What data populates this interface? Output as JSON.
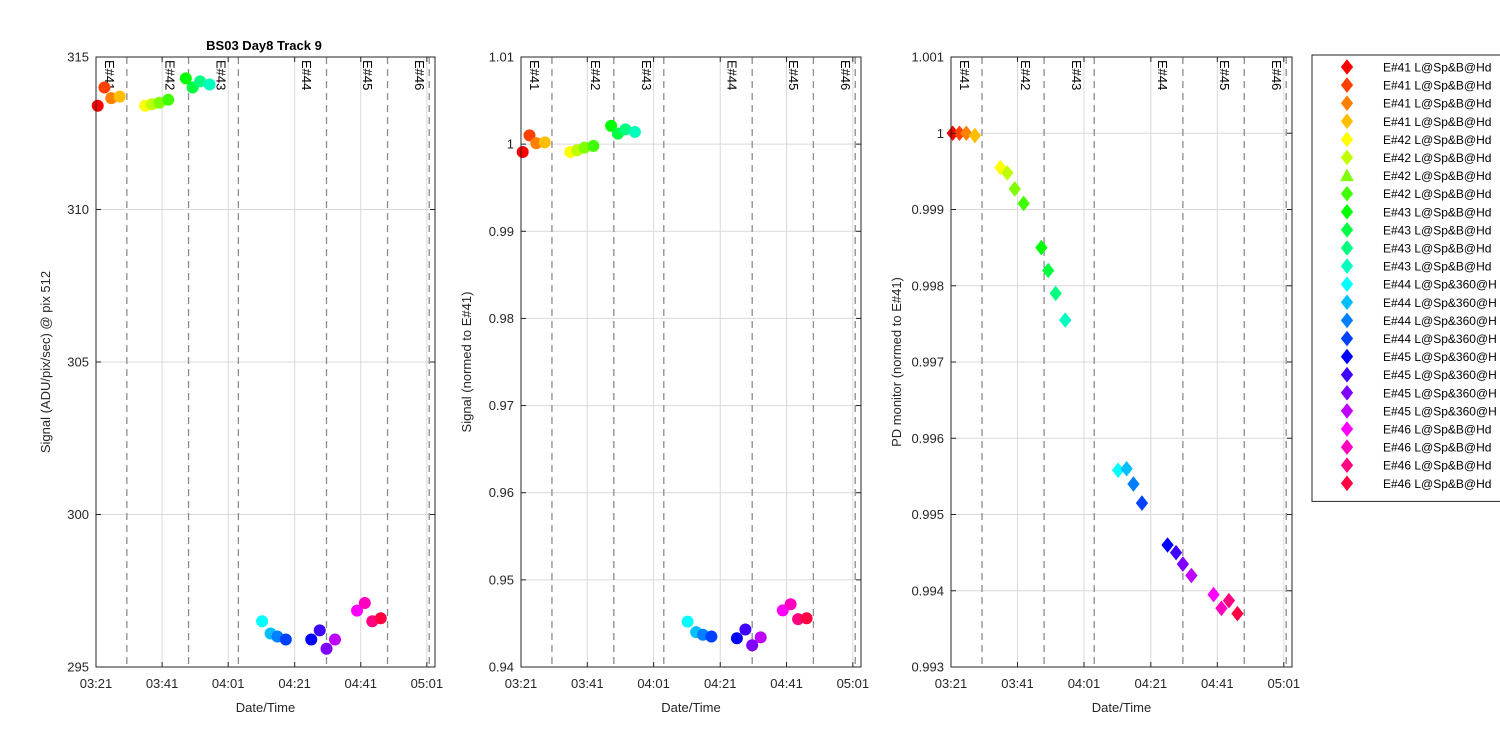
{
  "title": "BS03 Day8 Track 9",
  "colors": {
    "points": [
      "#ff0000",
      "#ff4000",
      "#ff8000",
      "#ffbf00",
      "#ffff00",
      "#bfff00",
      "#80ff00",
      "#40ff00",
      "#00ff00",
      "#00ff40",
      "#00ff80",
      "#00ffbf",
      "#00ffff",
      "#00bfff",
      "#0080ff",
      "#0040ff",
      "#0000ff",
      "#4000ff",
      "#8000ff",
      "#bf00ff",
      "#ff00ff",
      "#ff00bf",
      "#ff0080",
      "#ff0040"
    ],
    "grid": "#d9d9d9",
    "event_line": "#8c8c8c",
    "axis": "#262626"
  },
  "chart_data": [
    {
      "type": "scatter",
      "title": "BS03 Day8 Track 9",
      "xlabel": "Date/Time",
      "ylabel": "Signal (ADU/pix/sec) @ pix 512",
      "xlim": [
        0,
        100
      ],
      "ylim": [
        295,
        315
      ],
      "yticks": [
        295,
        300,
        305,
        310,
        315
      ],
      "marker": "circle",
      "x": [
        0.5,
        2.5,
        4.5,
        7.0,
        14.5,
        16.5,
        18.7,
        21.3,
        26.5,
        28.5,
        30.7,
        33.5,
        49.0,
        51.5,
        53.5,
        56.0,
        63.5,
        66.0,
        68.0,
        70.5,
        77.0,
        79.3,
        81.5,
        84.0
      ],
      "y": [
        313.4,
        314.0,
        313.65,
        313.7,
        313.4,
        313.45,
        313.5,
        313.6,
        314.3,
        314.0,
        314.2,
        314.1,
        296.5,
        296.1,
        296.0,
        295.9,
        295.9,
        296.2,
        295.6,
        295.9,
        296.85,
        297.1,
        296.5,
        296.6
      ]
    },
    {
      "type": "scatter",
      "title": "",
      "xlabel": "Date/Time",
      "ylabel": "Signal (normed to E#41)",
      "xlim": [
        0,
        100
      ],
      "ylim": [
        0.94,
        1.01
      ],
      "yticks": [
        "0.94",
        "0.95",
        "0.96",
        "0.97",
        "0.98",
        "0.99",
        "1",
        "1.01"
      ],
      "marker": "circle",
      "x": [
        0.5,
        2.5,
        4.5,
        7.0,
        14.5,
        16.5,
        18.7,
        21.3,
        26.5,
        28.5,
        30.7,
        33.5,
        49.0,
        51.5,
        53.5,
        56.0,
        63.5,
        66.0,
        68.0,
        70.5,
        77.0,
        79.3,
        81.5,
        84.0
      ],
      "y": [
        0.9991,
        1.001,
        1.0001,
        1.0002,
        0.9991,
        0.9993,
        0.9996,
        0.9998,
        1.0021,
        1.0012,
        1.0017,
        1.0014,
        0.9452,
        0.944,
        0.9437,
        0.9435,
        0.9433,
        0.9443,
        0.9425,
        0.9434,
        0.9465,
        0.9472,
        0.9455,
        0.9456
      ]
    },
    {
      "type": "scatter",
      "title": "",
      "xlabel": "Date/Time",
      "ylabel": "PD monitor (normed to E#41)",
      "xlim": [
        0,
        100
      ],
      "ylim": [
        0.993,
        1.001
      ],
      "yticks": [
        "0.993",
        "0.994",
        "0.995",
        "0.996",
        "0.997",
        "0.998",
        "0.999",
        "1",
        "1.001"
      ],
      "marker": "diamond",
      "x": [
        0.5,
        2.5,
        4.5,
        7.0,
        14.5,
        16.5,
        18.7,
        21.3,
        26.5,
        28.5,
        30.7,
        33.5,
        49.0,
        51.5,
        53.5,
        56.0,
        63.5,
        66.0,
        68.0,
        70.5,
        77.0,
        79.3,
        81.5,
        84.0
      ],
      "y": [
        1.0,
        1.0,
        1.0,
        0.99997,
        0.99955,
        0.99948,
        0.99927,
        0.99908,
        0.9985,
        0.9982,
        0.9979,
        0.99755,
        0.99558,
        0.9956,
        0.9954,
        0.99515,
        0.9946,
        0.9945,
        0.99435,
        0.9942,
        0.99395,
        0.99377,
        0.99387,
        0.9937
      ]
    }
  ],
  "x_axis": {
    "tick_labels": [
      "03:21",
      "03:41",
      "04:01",
      "04:21",
      "04:41",
      "05:01"
    ],
    "tick_positions": [
      0,
      19.5,
      39,
      58.6,
      78.1,
      97.6
    ]
  },
  "event_markers": {
    "labels": [
      "E#41",
      "E#42",
      "E#43",
      "E#44",
      "E#45",
      "E#46"
    ],
    "label_positions": [
      4.1,
      22,
      37,
      62.2,
      80.3,
      95.6
    ],
    "dashed_positions": [
      9.1,
      27.3,
      42,
      68,
      86,
      98.3
    ]
  },
  "legend": {
    "entries": [
      "E#41 L@Sp&B@Hd",
      "E#41 L@Sp&B@Hd",
      "E#41 L@Sp&B@Hd",
      "E#41 L@Sp&B@Hd",
      "E#42 L@Sp&B@Hd",
      "E#42 L@Sp&B@Hd",
      "E#42 L@Sp&B@Hd",
      "E#42 L@Sp&B@Hd",
      "E#43 L@Sp&B@Hd",
      "E#43 L@Sp&B@Hd",
      "E#43 L@Sp&B@Hd",
      "E#43 L@Sp&B@Hd",
      "E#44 L@Sp&360@H",
      "E#44 L@Sp&360@H",
      "E#44 L@Sp&360@H",
      "E#44 L@Sp&360@H",
      "E#45 L@Sp&360@H",
      "E#45 L@Sp&360@H",
      "E#45 L@Sp&360@H",
      "E#45 L@Sp&360@H",
      "E#46 L@Sp&B@Hd",
      "E#46 L@Sp&B@Hd",
      "E#46 L@Sp&B@Hd",
      "E#46 L@Sp&B@Hd"
    ],
    "markers": [
      "diamond",
      "diamond",
      "diamond",
      "diamond",
      "diamond",
      "diamond",
      "triangle",
      "diamond",
      "diamond",
      "diamond",
      "diamond",
      "diamond",
      "diamond",
      "diamond",
      "diamond",
      "diamond",
      "diamond",
      "diamond",
      "diamond",
      "diamond",
      "diamond",
      "diamond",
      "diamond",
      "diamond"
    ]
  }
}
